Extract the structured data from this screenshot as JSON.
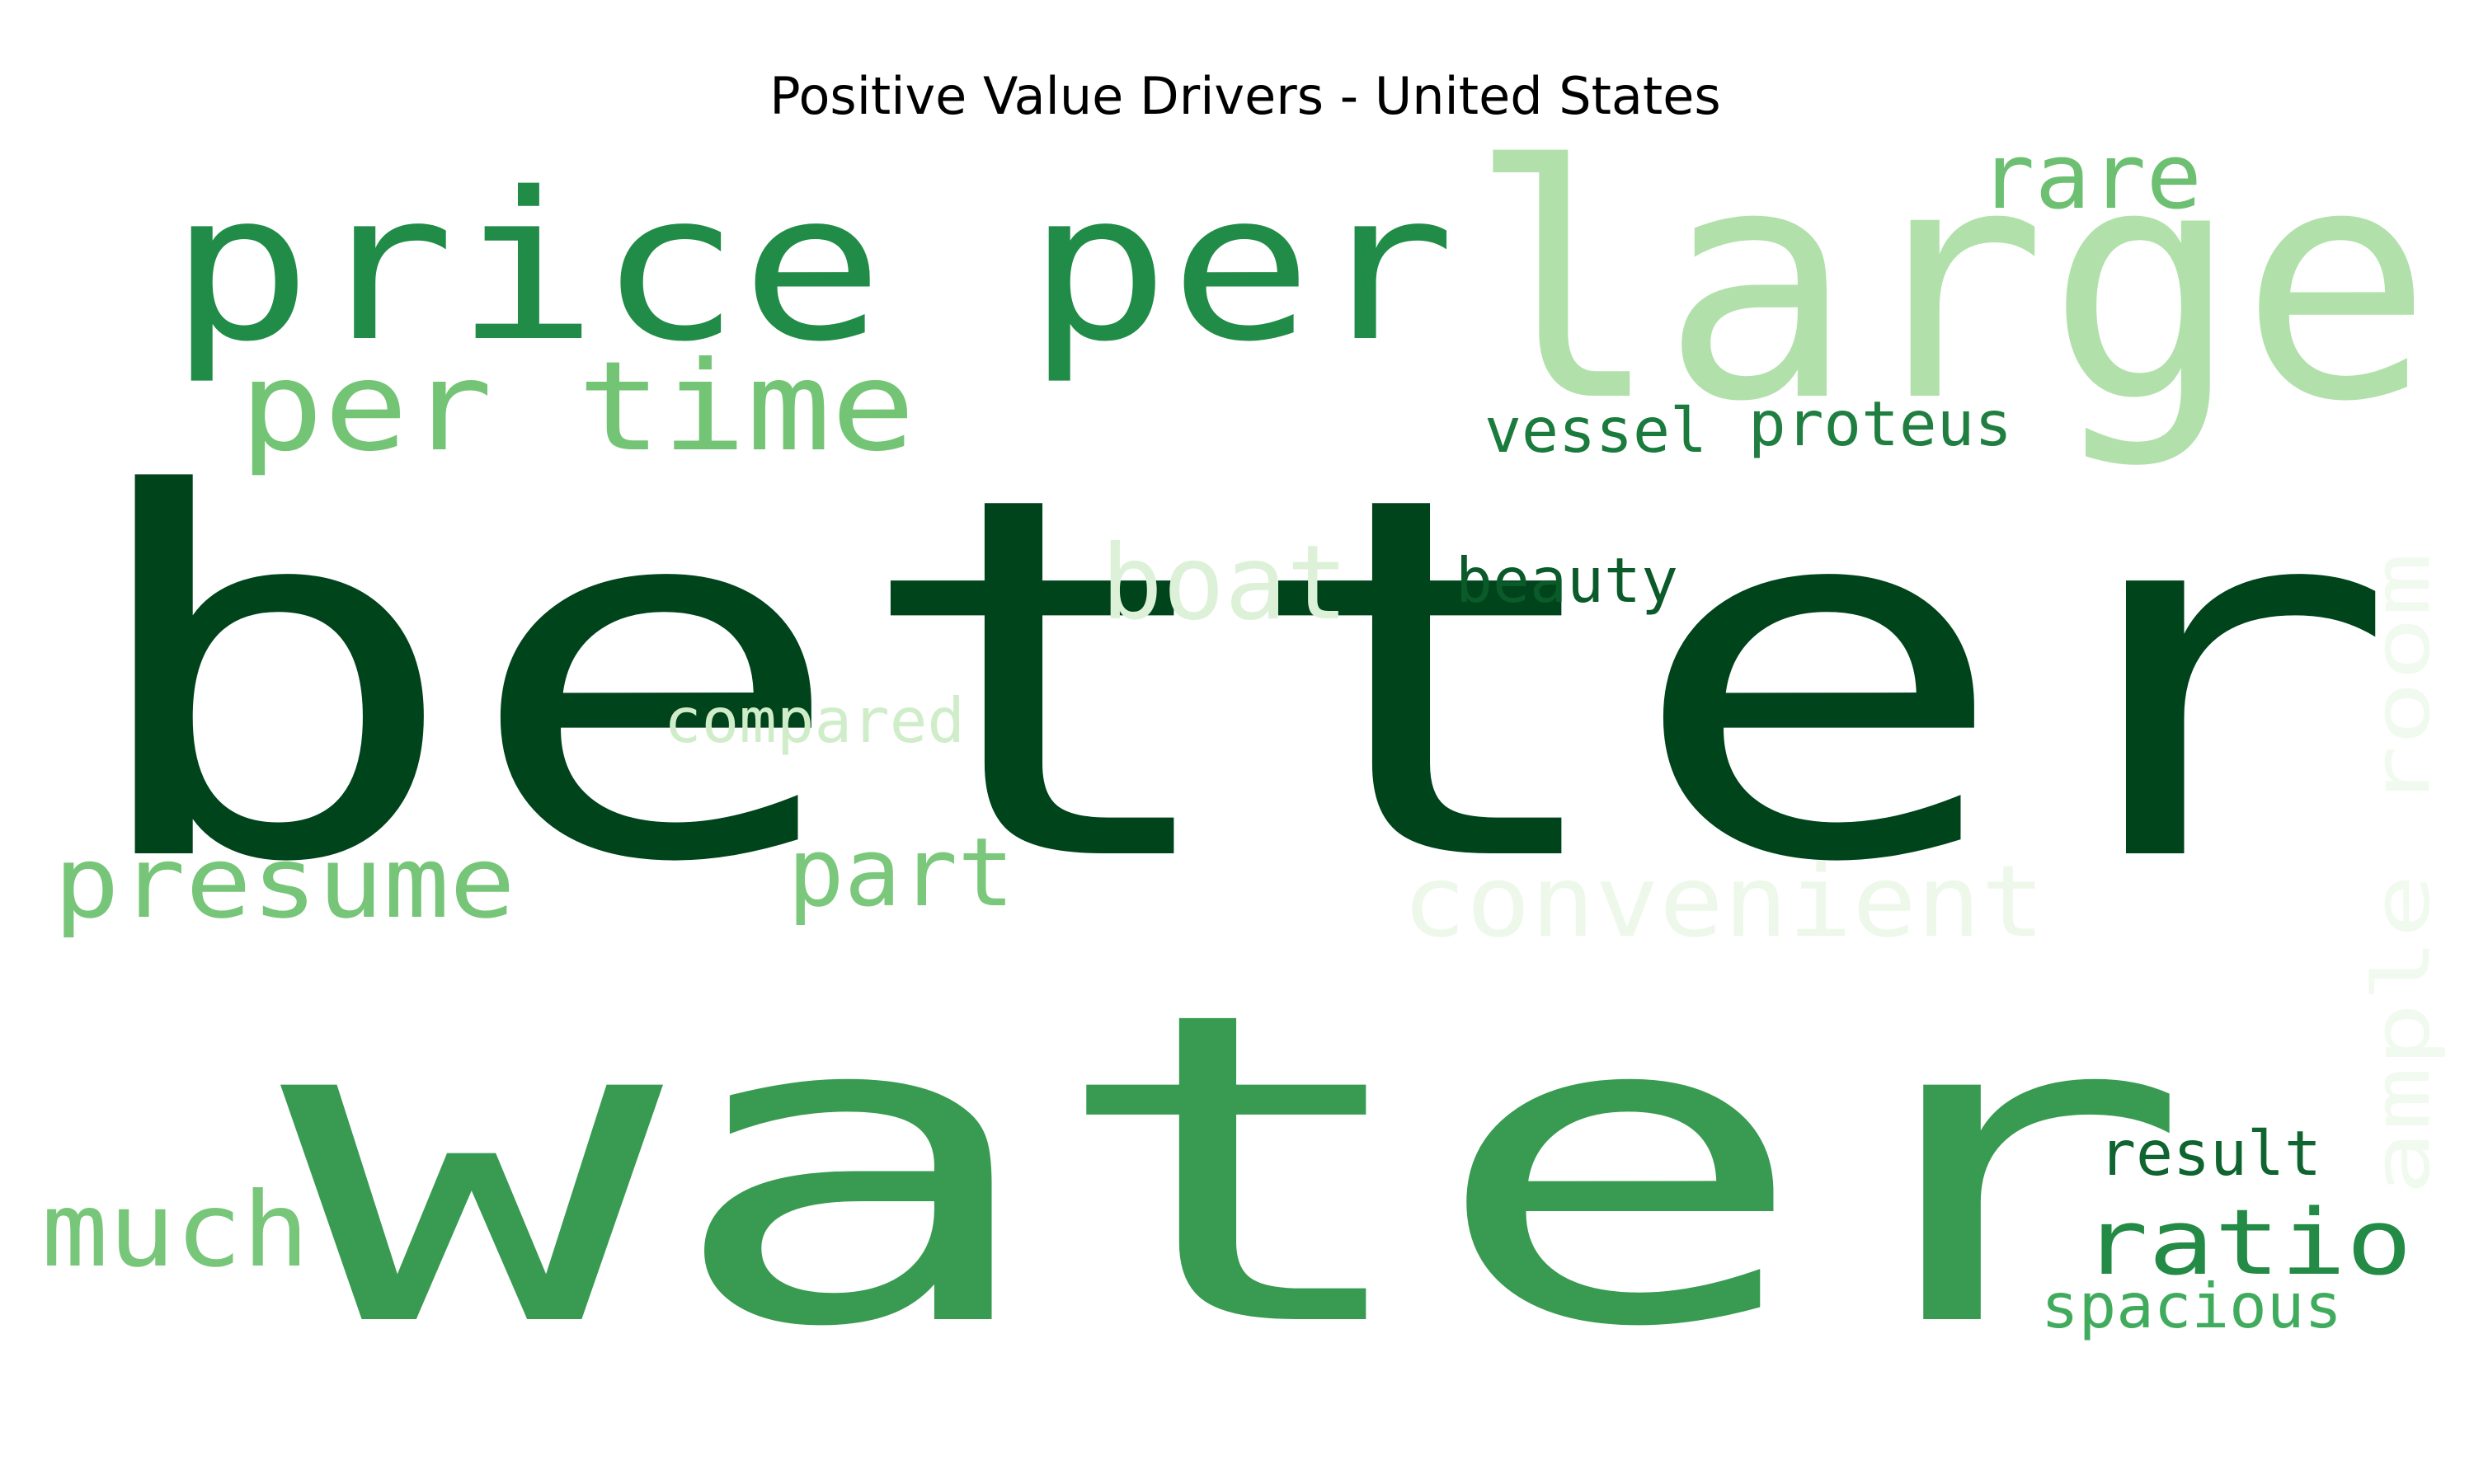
{
  "title": "Positive Value Drivers - United States",
  "colormap": "Greens",
  "words": [
    {
      "text": "better",
      "color": "#00441b"
    },
    {
      "text": "water",
      "color": "#389b51"
    },
    {
      "text": "price per",
      "color": "#218c47"
    },
    {
      "text": "large",
      "color": "#b1e0ab"
    },
    {
      "text": "per time",
      "color": "#74c476"
    },
    {
      "text": "rare",
      "color": "#6dc072"
    },
    {
      "text": "vessel",
      "color": "#1a7b3d"
    },
    {
      "text": "proteus",
      "color": "#1f7e40"
    },
    {
      "text": "boat",
      "color": "#dcf1d7"
    },
    {
      "text": "beauty",
      "color": "#0b5a2a"
    },
    {
      "text": "compared",
      "color": "#d0edca"
    },
    {
      "text": "presume",
      "color": "#76c578"
    },
    {
      "text": "part",
      "color": "#7bc87c"
    },
    {
      "text": "convenient",
      "color": "#edf8ea"
    },
    {
      "text": "ample room",
      "color": "#f1faee"
    },
    {
      "text": "much",
      "color": "#78c679"
    },
    {
      "text": "result",
      "color": "#0f6430"
    },
    {
      "text": "ratio",
      "color": "#238b45"
    },
    {
      "text": "spacious",
      "color": "#41ab5d"
    }
  ]
}
